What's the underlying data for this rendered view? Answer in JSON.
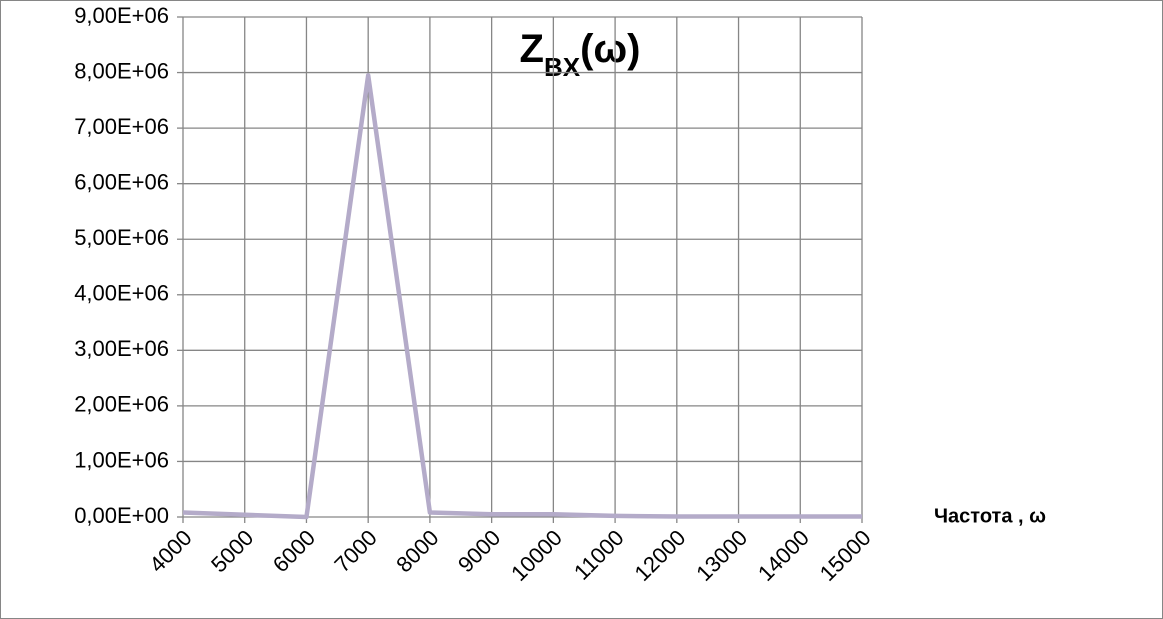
{
  "chart_data": {
    "type": "line",
    "title": {
      "main": "Z",
      "sub": "BX",
      "tail": "(ω)"
    },
    "x_label": "Частота , ω",
    "x": [
      4000,
      5000,
      6000,
      7000,
      8000,
      9000,
      10000,
      11000,
      12000,
      13000,
      14000,
      15000
    ],
    "series": [
      {
        "color": "#b4abc9",
        "values": [
          80000,
          40000,
          0,
          7950000,
          80000,
          50000,
          50000,
          20000,
          10000,
          10000,
          10000,
          10000
        ]
      }
    ],
    "xlim": [
      4000,
      15000
    ],
    "xticks": [
      4000,
      5000,
      6000,
      7000,
      8000,
      9000,
      10000,
      11000,
      12000,
      13000,
      14000,
      15000
    ],
    "ylim": [
      0,
      9000000
    ],
    "yticks": [
      {
        "value": 0,
        "label": "0,00E+00"
      },
      {
        "value": 1000000,
        "label": "1,00E+06"
      },
      {
        "value": 2000000,
        "label": "2,00E+06"
      },
      {
        "value": 3000000,
        "label": "3,00E+06"
      },
      {
        "value": 4000000,
        "label": "4,00E+06"
      },
      {
        "value": 5000000,
        "label": "5,00E+06"
      },
      {
        "value": 6000000,
        "label": "6,00E+06"
      },
      {
        "value": 7000000,
        "label": "7,00E+06"
      },
      {
        "value": 8000000,
        "label": "8,00E+06"
      },
      {
        "value": 9000000,
        "label": "9,00E+06"
      }
    ],
    "grid": true
  }
}
